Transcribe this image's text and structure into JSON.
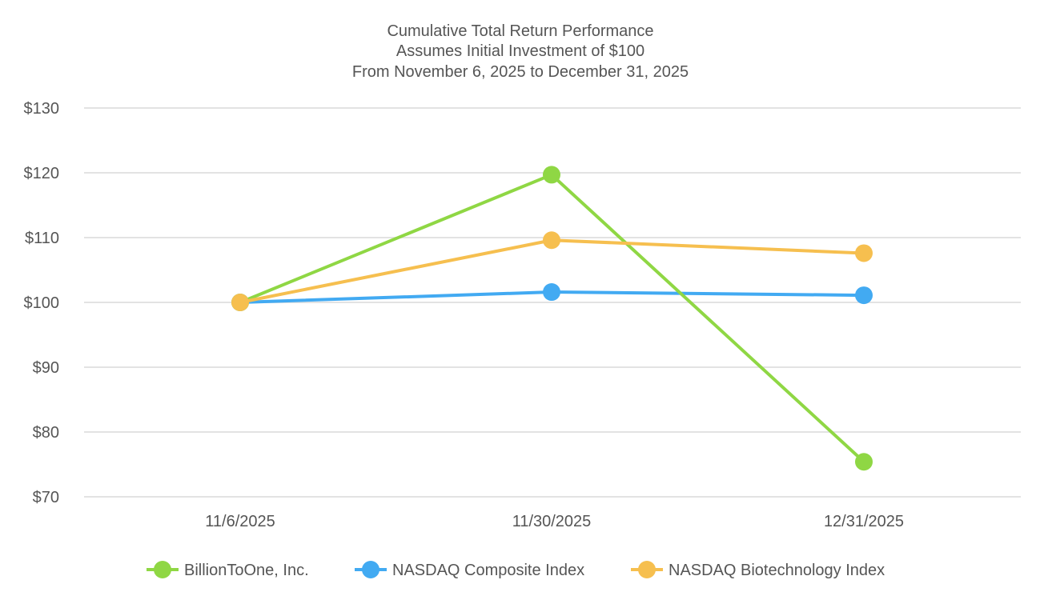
{
  "chart_data": {
    "type": "line",
    "title_lines": [
      "Cumulative Total Return Performance",
      "Assumes Initial Investment of $100",
      "From November 6, 2025 to December 31, 2025"
    ],
    "xlabel": "",
    "ylabel": "",
    "categories": [
      "11/6/2025",
      "11/30/2025",
      "12/31/2025"
    ],
    "ylim": [
      70,
      130
    ],
    "yticks": [
      70,
      80,
      90,
      100,
      110,
      120,
      130
    ],
    "ytick_labels": [
      "$70",
      "$80",
      "$90",
      "$100",
      "$110",
      "$120",
      "$130"
    ],
    "grid": true,
    "legend_position": "bottom",
    "series": [
      {
        "name": "NASDAQ Composite Index",
        "color": "#42aaf2",
        "values": [
          100,
          101.6,
          101.1
        ]
      },
      {
        "name": "BillionToOne, Inc.",
        "color": "#8fd744",
        "values": [
          100,
          119.7,
          75.4
        ]
      },
      {
        "name": "NASDAQ Biotechnology Index",
        "color": "#f6bf4f",
        "values": [
          100,
          109.6,
          107.6
        ]
      }
    ],
    "legend_order": [
      "BillionToOne, Inc.",
      "NASDAQ Composite Index",
      "NASDAQ Biotechnology Index"
    ]
  }
}
